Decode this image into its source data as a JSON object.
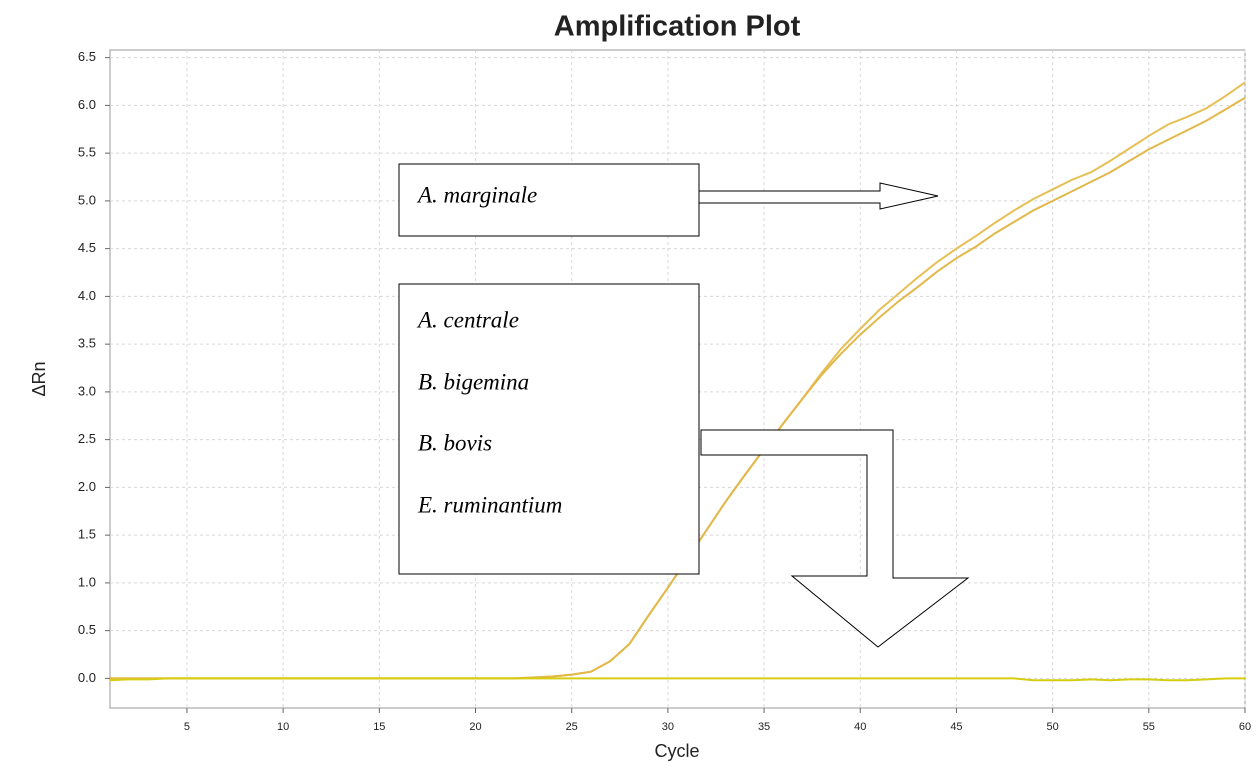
{
  "chart_data": {
    "type": "line",
    "title": "Amplification Plot",
    "xlabel": "Cycle",
    "ylabel": "ΔRn",
    "x": [
      1,
      2,
      3,
      4,
      5,
      6,
      7,
      8,
      9,
      10,
      11,
      12,
      13,
      14,
      15,
      16,
      17,
      18,
      19,
      20,
      21,
      22,
      23,
      24,
      25,
      26,
      27,
      28,
      29,
      30,
      31,
      32,
      33,
      34,
      35,
      36,
      37,
      38,
      39,
      40,
      41,
      42,
      43,
      44,
      45,
      46,
      47,
      48,
      49,
      50,
      51,
      52,
      53,
      54,
      55,
      56,
      57,
      58,
      59,
      60
    ],
    "series": [
      {
        "color": "#e6bf55",
        "values": [
          0,
          0,
          0,
          0,
          0,
          0,
          0,
          0,
          0,
          0,
          0,
          0,
          0,
          0,
          0,
          0,
          0,
          0,
          0,
          0,
          0,
          0,
          0.01,
          0.02,
          0.04,
          0.07,
          0.18,
          0.36,
          0.66,
          0.95,
          1.25,
          1.55,
          1.85,
          2.13,
          2.4,
          2.67,
          2.93,
          3.2,
          3.45,
          3.66,
          3.86,
          4.03,
          4.2,
          4.36,
          4.5,
          4.63,
          4.77,
          4.9,
          5.02,
          5.12,
          5.22,
          5.3,
          5.42,
          5.55,
          5.68,
          5.8,
          5.88,
          5.97,
          6.1,
          6.24
        ]
      },
      {
        "color": "#e2b84a",
        "values": [
          0,
          0,
          0,
          0,
          0,
          0,
          0,
          0,
          0,
          0,
          0,
          0,
          0,
          0,
          0,
          0,
          0,
          0,
          0,
          0,
          0,
          0,
          0.01,
          0.02,
          0.04,
          0.07,
          0.18,
          0.36,
          0.66,
          0.95,
          1.25,
          1.55,
          1.85,
          2.13,
          2.4,
          2.67,
          2.93,
          3.18,
          3.4,
          3.6,
          3.78,
          3.95,
          4.1,
          4.26,
          4.4,
          4.52,
          4.66,
          4.78,
          4.9,
          5.0,
          5.1,
          5.2,
          5.3,
          5.42,
          5.54,
          5.64,
          5.74,
          5.84,
          5.96,
          6.08
        ]
      },
      {
        "color": "#d6cc10",
        "values": [
          -0.02,
          -0.01,
          -0.01,
          0,
          0,
          0,
          0,
          0,
          0,
          0,
          0,
          0,
          0,
          0,
          0,
          0,
          0,
          0,
          0,
          0,
          0,
          0,
          0,
          0,
          0,
          0,
          0,
          0,
          0,
          0,
          0,
          0,
          0,
          0,
          0,
          0,
          0,
          0,
          0,
          0,
          0,
          0,
          0,
          0,
          0,
          0,
          0,
          0,
          -0.02,
          -0.02,
          -0.02,
          -0.01,
          -0.02,
          -0.01,
          -0.01,
          -0.02,
          -0.02,
          -0.01,
          0,
          0
        ]
      }
    ],
    "xlim": [
      1,
      60
    ],
    "xticks": [
      5,
      10,
      15,
      20,
      25,
      30,
      35,
      40,
      45,
      50,
      55,
      60
    ],
    "ylim": [
      -0.31,
      6.58
    ],
    "yticks": [
      {
        "value": 0,
        "label": "0.0"
      },
      0.5,
      {
        "value": 1,
        "label": "1.0"
      },
      1.5,
      {
        "value": 2,
        "label": "2.0"
      },
      2.5,
      {
        "value": 3,
        "label": "3.0"
      },
      3.5,
      {
        "value": 4,
        "label": "4.0"
      },
      4.5,
      {
        "value": 5,
        "label": "5.0"
      },
      5.5,
      {
        "value": 6,
        "label": "6.0"
      },
      6.5
    ],
    "grid": true,
    "annotations": [
      "A. marginale",
      "A. centrale",
      "B. bigemina",
      "B. bovis",
      "E. ruminantium"
    ]
  }
}
